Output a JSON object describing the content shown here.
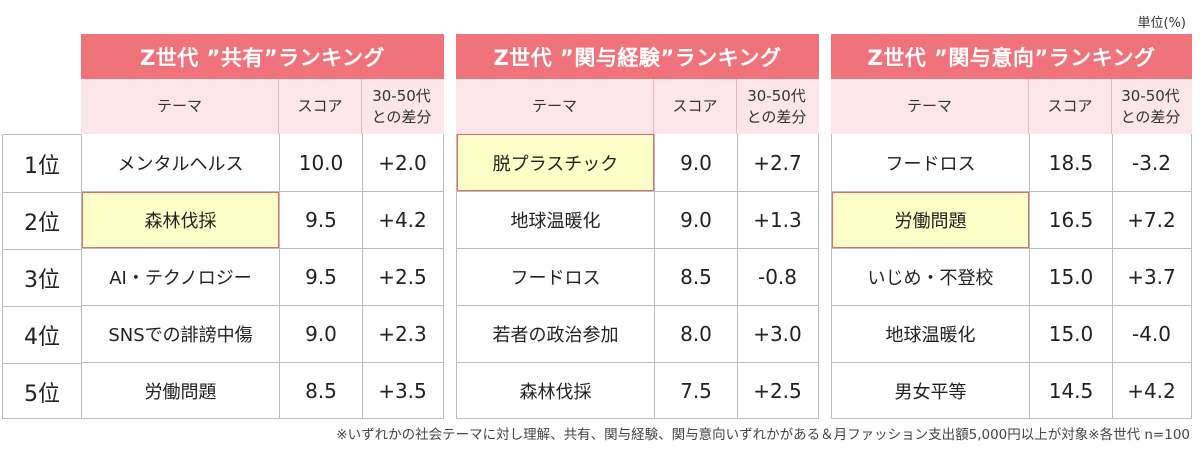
{
  "unit_label": "単位(%)",
  "footnote": "※いずれかの社会テーマに対し理解、共有、関与経験、関与意向いずれかがある＆月ファッション支出額5,000円以上が対象※各世代 n=100",
  "ranks": [
    "1位",
    "2位",
    "3位",
    "4位",
    "5位"
  ],
  "header": {
    "theme": "テーマ",
    "score": "スコア",
    "diff_line1": "30-50代",
    "diff_line2": "との差分"
  },
  "colors": {
    "title_bg": "#f0737b",
    "header_bg": "#fde6ea",
    "highlight_bg": "#ffffc8",
    "highlight_border": "#e06a72"
  },
  "chart_data": [
    {
      "type": "table",
      "title": "Z世代 ”共有”ランキング",
      "columns": [
        "テーマ",
        "スコア",
        "30-50代との差分"
      ],
      "rows": [
        {
          "rank": "1位",
          "theme": "メンタルヘルス",
          "score": "10.0",
          "diff": "+2.0",
          "highlight": false
        },
        {
          "rank": "2位",
          "theme": "森林伐採",
          "score": "9.5",
          "diff": "+4.2",
          "highlight": true
        },
        {
          "rank": "3位",
          "theme": "AI・テクノロジー",
          "score": "9.5",
          "diff": "+2.5",
          "highlight": false
        },
        {
          "rank": "4位",
          "theme": "SNSでの誹謗中傷",
          "score": "9.0",
          "diff": "+2.3",
          "highlight": false
        },
        {
          "rank": "5位",
          "theme": "労働問題",
          "score": "8.5",
          "diff": "+3.5",
          "highlight": false
        }
      ]
    },
    {
      "type": "table",
      "title": "Z世代 ”関与経験”ランキング",
      "columns": [
        "テーマ",
        "スコア",
        "30-50代との差分"
      ],
      "rows": [
        {
          "rank": "1位",
          "theme": "脱プラスチック",
          "score": "9.0",
          "diff": "+2.7",
          "highlight": true
        },
        {
          "rank": "2位",
          "theme": "地球温暖化",
          "score": "9.0",
          "diff": "+1.3",
          "highlight": false
        },
        {
          "rank": "3位",
          "theme": "フードロス",
          "score": "8.5",
          "diff": "-0.8",
          "highlight": false
        },
        {
          "rank": "4位",
          "theme": "若者の政治参加",
          "score": "8.0",
          "diff": "+3.0",
          "highlight": false
        },
        {
          "rank": "5位",
          "theme": "森林伐採",
          "score": "7.5",
          "diff": "+2.5",
          "highlight": false
        }
      ]
    },
    {
      "type": "table",
      "title": "Z世代 ”関与意向”ランキング",
      "columns": [
        "テーマ",
        "スコア",
        "30-50代との差分"
      ],
      "rows": [
        {
          "rank": "1位",
          "theme": "フードロス",
          "score": "18.5",
          "diff": "-3.2",
          "highlight": false
        },
        {
          "rank": "2位",
          "theme": "労働問題",
          "score": "16.5",
          "diff": "+7.2",
          "highlight": true
        },
        {
          "rank": "3位",
          "theme": "いじめ・不登校",
          "score": "15.0",
          "diff": "+3.7",
          "highlight": false
        },
        {
          "rank": "4位",
          "theme": "地球温暖化",
          "score": "15.0",
          "diff": "-4.0",
          "highlight": false
        },
        {
          "rank": "5位",
          "theme": "男女平等",
          "score": "14.5",
          "diff": "+4.2",
          "highlight": false
        }
      ]
    }
  ]
}
